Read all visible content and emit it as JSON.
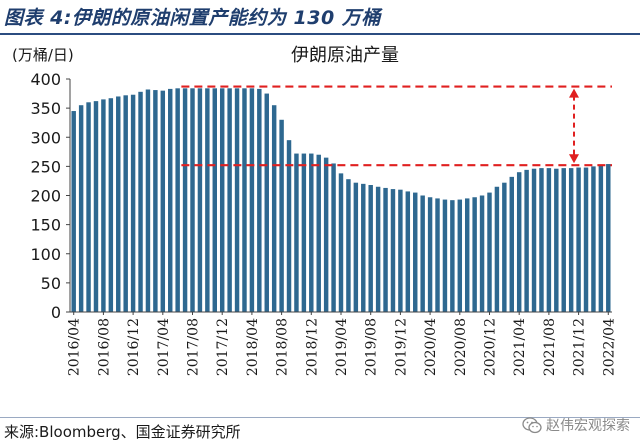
{
  "figure": {
    "title": "图表 4:伊朗的原油闲置产能约为 130 万桶",
    "source": "来源:Bloomberg、国金证券研究所",
    "watermark": "赵伟宏观探索",
    "watermark_icon": "wechat-icon"
  },
  "colors": {
    "bar": "#2e6890",
    "ref_line": "#e02020",
    "title": "#1f3e6e"
  },
  "chart_data": {
    "type": "bar",
    "title": "伊朗原油产量",
    "unit_label": "(万桶/日)",
    "xlabel": "",
    "ylabel": "",
    "ylim": [
      0,
      400
    ],
    "yticks": [
      0,
      50,
      100,
      150,
      200,
      250,
      300,
      350,
      400
    ],
    "grid": false,
    "legend": "none",
    "categories": [
      "2016/04",
      "2016/05",
      "2016/06",
      "2016/07",
      "2016/08",
      "2016/09",
      "2016/10",
      "2016/11",
      "2016/12",
      "2017/01",
      "2017/02",
      "2017/03",
      "2017/04",
      "2017/05",
      "2017/06",
      "2017/07",
      "2017/08",
      "2017/09",
      "2017/10",
      "2017/11",
      "2017/12",
      "2018/01",
      "2018/02",
      "2018/03",
      "2018/04",
      "2018/05",
      "2018/06",
      "2018/07",
      "2018/08",
      "2018/09",
      "2018/10",
      "2018/11",
      "2018/12",
      "2019/01",
      "2019/02",
      "2019/03",
      "2019/04",
      "2019/05",
      "2019/06",
      "2019/07",
      "2019/08",
      "2019/09",
      "2019/10",
      "2019/11",
      "2019/12",
      "2020/01",
      "2020/02",
      "2020/03",
      "2020/04",
      "2020/05",
      "2020/06",
      "2020/07",
      "2020/08",
      "2020/09",
      "2020/10",
      "2020/11",
      "2020/12",
      "2021/01",
      "2021/02",
      "2021/03",
      "2021/04",
      "2021/05",
      "2021/06",
      "2021/07",
      "2021/08",
      "2021/09",
      "2021/10",
      "2021/11",
      "2021/12",
      "2022/01",
      "2022/02",
      "2022/03",
      "2022/04"
    ],
    "tick_labels": [
      "2016/04",
      "2016/08",
      "2016/12",
      "2017/04",
      "2017/08",
      "2017/12",
      "2018/04",
      "2018/08",
      "2018/12",
      "2019/04",
      "2019/08",
      "2019/12",
      "2020/04",
      "2020/08",
      "2020/12",
      "2021/04",
      "2021/08",
      "2021/12",
      "2022/04"
    ],
    "series": [
      {
        "values": [
          345,
          355,
          360,
          362,
          365,
          367,
          370,
          372,
          373,
          378,
          382,
          381,
          380,
          383,
          384,
          384,
          384,
          384,
          384,
          384,
          384,
          384,
          384,
          384,
          384,
          383,
          375,
          355,
          330,
          295,
          272,
          272,
          272,
          270,
          265,
          255,
          238,
          228,
          222,
          220,
          218,
          215,
          213,
          211,
          210,
          207,
          205,
          200,
          197,
          195,
          193,
          192,
          193,
          195,
          197,
          200,
          205,
          215,
          222,
          232,
          240,
          244,
          246,
          247,
          247,
          246,
          247,
          247,
          248,
          248,
          250,
          253,
          254
        ]
      }
    ],
    "annotations": [
      {
        "type": "hline",
        "y": 387
      },
      {
        "type": "hline",
        "y": 252
      },
      {
        "type": "double-arrow",
        "from": 252,
        "to": 387
      }
    ]
  }
}
